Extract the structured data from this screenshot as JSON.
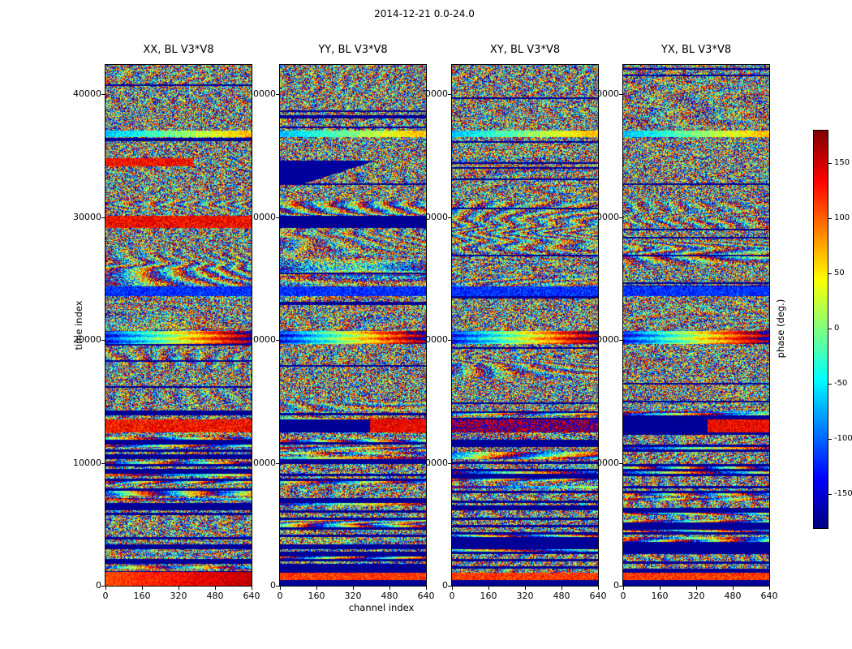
{
  "title": "2014-12-21 0.0-24.0",
  "chart_data": {
    "type": "heatmap",
    "xlabel": "channel index",
    "ylabel": "time index",
    "xlim": [
      0,
      640
    ],
    "ylim": [
      0,
      42400
    ],
    "x_ticks": [
      0,
      160,
      320,
      480,
      640
    ],
    "y_ticks": [
      0,
      10000,
      20000,
      30000,
      40000
    ],
    "colormap": "jet",
    "panels": [
      {
        "title": "XX, BL V3*V8"
      },
      {
        "title": "YY, BL V3*V8"
      },
      {
        "title": "XY, BL V3*V8"
      },
      {
        "title": "YX, BL V3*V8"
      }
    ],
    "colorbar": {
      "label": "phase (deg.)",
      "vmin": -180,
      "vmax": 180,
      "ticks": [
        150,
        100,
        50,
        0,
        -50,
        -100,
        -150
      ]
    },
    "visible_features": [
      {
        "time_range": [
          0,
          14200
        ],
        "panels": "all",
        "feature": "alternating dark-navy flagged rows and noisy colored rows"
      },
      {
        "time_range": [
          12500,
          13500
        ],
        "panels": "XX",
        "feature": "saturated orange-red band"
      },
      {
        "time_range": [
          12500,
          13500
        ],
        "panels": "YY,YX",
        "feature": "navy band with red-orange right section"
      },
      {
        "time_range": [
          19650,
          20750
        ],
        "panels": "all",
        "feature": "bright coherent band, cyan left to orange right"
      },
      {
        "time_range": [
          23550,
          24350
        ],
        "panels": "all",
        "feature": "dark blue band"
      },
      {
        "time_range": [
          29150,
          30100
        ],
        "panels": "XX",
        "feature": "orange band"
      },
      {
        "time_range": [
          29150,
          30100
        ],
        "panels": "YY",
        "feature": "navy band"
      },
      {
        "time_range": [
          32700,
          34600
        ],
        "panels": "YY",
        "feature": "navy wedge on left side"
      },
      {
        "time_range": [
          36550,
          37050
        ],
        "panels": "all",
        "feature": "thin bright cyan-yellow line"
      },
      {
        "time_range": [
          14200,
          42400
        ],
        "panels": "all",
        "feature": "pseudo-random phase noise with curved interference fringes"
      }
    ]
  }
}
